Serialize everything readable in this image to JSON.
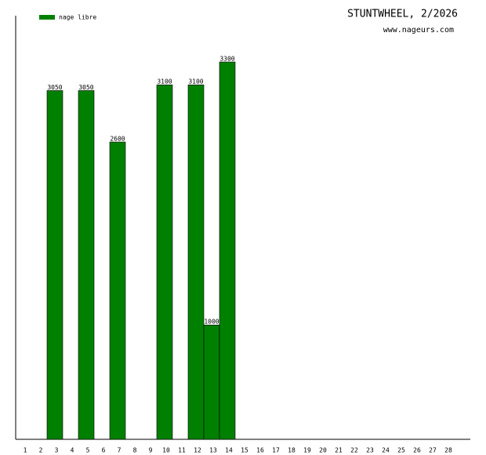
{
  "chart_data": {
    "type": "bar",
    "title": "STUNTWHEEL, 2/2026",
    "subtitle": "www.nageurs.com",
    "categories": [
      "1",
      "2",
      "3",
      "4",
      "5",
      "6",
      "7",
      "8",
      "9",
      "10",
      "11",
      "12",
      "13",
      "14",
      "15",
      "16",
      "17",
      "18",
      "19",
      "20",
      "21",
      "22",
      "23",
      "24",
      "25",
      "26",
      "27",
      "28"
    ],
    "series": [
      {
        "name": "nage libre",
        "color": "#008000",
        "values": [
          null,
          null,
          3050,
          null,
          3050,
          null,
          2600,
          null,
          null,
          3100,
          null,
          3100,
          1000,
          3300,
          null,
          null,
          null,
          null,
          null,
          null,
          null,
          null,
          null,
          null,
          null,
          null,
          null,
          null
        ]
      }
    ],
    "legend": "top-left"
  }
}
